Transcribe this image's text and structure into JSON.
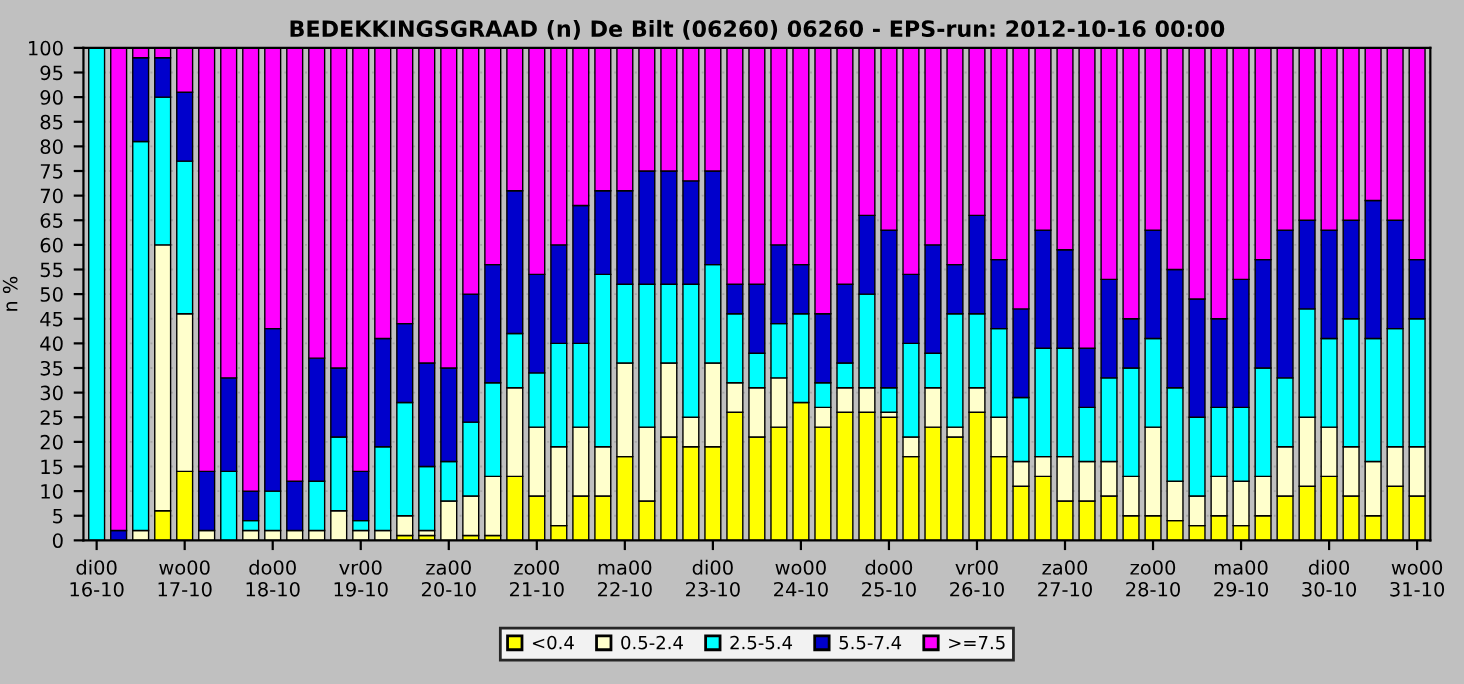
{
  "chart_data": {
    "type": "bar",
    "stacked": true,
    "title": "BEDEKKINGSGRAAD (n) De Bilt (06260) 06260 - EPS-run: 2012-10-16 00:00",
    "ylabel": "n %",
    "categories": [
      "di00\n16-10",
      null,
      null,
      null,
      "wo00\n17-10",
      null,
      null,
      null,
      "do00\n18-10",
      null,
      null,
      null,
      "vr00\n19-10",
      null,
      null,
      null,
      "za00\n20-10",
      null,
      null,
      null,
      "zo00\n21-10",
      null,
      null,
      null,
      "ma00\n22-10",
      null,
      null,
      null,
      "di00\n23-10",
      null,
      null,
      null,
      "wo00\n24-10",
      null,
      null,
      null,
      "do00\n25-10",
      null,
      null,
      null,
      "vr00\n26-10",
      null,
      null,
      null,
      "za00\n27-10",
      null,
      null,
      null,
      "zo00\n28-10",
      null,
      null,
      null,
      "ma00\n29-10",
      null,
      null,
      null,
      "di00\n30-10",
      null,
      null,
      null,
      "wo00\n31-10"
    ],
    "series": [
      {
        "name": "<0.4",
        "color": "#ffff00",
        "values": [
          0,
          0,
          0,
          6,
          14,
          0,
          0,
          0,
          0,
          0,
          0,
          0,
          0,
          0,
          1,
          1,
          0,
          1,
          1,
          13,
          9,
          3,
          9,
          9,
          17,
          8,
          21,
          19,
          19,
          26,
          21,
          23,
          28,
          23,
          26,
          26,
          25,
          17,
          23,
          21,
          26,
          17,
          11,
          13,
          8,
          8,
          9,
          5,
          5,
          4,
          3,
          5,
          3,
          5,
          9,
          11,
          13,
          9,
          5,
          11,
          9
        ]
      },
      {
        "name": "0.5-2.4",
        "color": "#ffffcc",
        "values": [
          0,
          0,
          2,
          54,
          32,
          2,
          0,
          2,
          2,
          2,
          2,
          6,
          2,
          2,
          4,
          1,
          8,
          8,
          12,
          18,
          14,
          16,
          14,
          10,
          19,
          15,
          15,
          6,
          17,
          6,
          10,
          10,
          0,
          4,
          5,
          5,
          1,
          4,
          8,
          2,
          5,
          8,
          5,
          4,
          9,
          8,
          7,
          8,
          18,
          8,
          6,
          8,
          9,
          8,
          10,
          14,
          10,
          10,
          11,
          8,
          10
        ]
      },
      {
        "name": "2.5-5.4",
        "color": "#00ffff",
        "values": [
          100,
          0,
          79,
          30,
          31,
          0,
          14,
          2,
          8,
          0,
          10,
          15,
          2,
          17,
          23,
          13,
          8,
          15,
          19,
          11,
          11,
          21,
          17,
          35,
          16,
          29,
          16,
          27,
          20,
          14,
          7,
          11,
          18,
          5,
          5,
          19,
          5,
          19,
          7,
          23,
          15,
          18,
          13,
          22,
          22,
          11,
          17,
          22,
          18,
          19,
          16,
          14,
          15,
          22,
          14,
          22,
          18,
          26,
          25,
          24,
          26
        ]
      },
      {
        "name": "5.5-7.4",
        "color": "#0000cc",
        "values": [
          0,
          2,
          17,
          8,
          14,
          12,
          19,
          6,
          33,
          10,
          25,
          14,
          10,
          22,
          16,
          21,
          19,
          26,
          24,
          29,
          20,
          20,
          28,
          17,
          19,
          23,
          23,
          21,
          19,
          6,
          14,
          16,
          10,
          14,
          16,
          16,
          32,
          14,
          22,
          10,
          20,
          14,
          18,
          24,
          20,
          12,
          20,
          10,
          22,
          24,
          24,
          18,
          26,
          22,
          30,
          18,
          22,
          20,
          28,
          22,
          12
        ]
      },
      {
        "name": ">=7.5",
        "color": "#ff00ff",
        "values": [
          0,
          98,
          2,
          2,
          9,
          86,
          67,
          90,
          57,
          88,
          63,
          65,
          86,
          59,
          56,
          64,
          65,
          50,
          44,
          29,
          46,
          40,
          32,
          29,
          29,
          25,
          25,
          27,
          25,
          48,
          48,
          40,
          44,
          54,
          48,
          34,
          37,
          46,
          40,
          44,
          34,
          43,
          53,
          37,
          41,
          61,
          47,
          55,
          37,
          45,
          51,
          55,
          47,
          43,
          37,
          35,
          37,
          35,
          31,
          35,
          43
        ]
      }
    ],
    "ylim": [
      0,
      100
    ],
    "yticks": [
      0,
      5,
      10,
      15,
      20,
      25,
      30,
      35,
      40,
      45,
      50,
      55,
      60,
      65,
      70,
      75,
      80,
      85,
      90,
      95,
      100
    ],
    "grid": "y",
    "legend": "bottom"
  }
}
